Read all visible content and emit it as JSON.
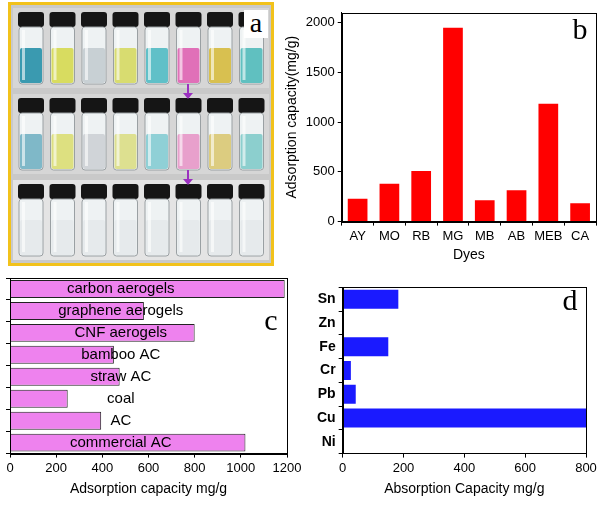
{
  "photo": {
    "panel": "a"
  },
  "chart_data": [
    {
      "panel": "b",
      "type": "bar",
      "categories": [
        "AY",
        "MO",
        "RB",
        "MG",
        "MB",
        "AB",
        "MEB",
        "CA"
      ],
      "values": [
        230,
        380,
        510,
        1950,
        215,
        315,
        1185,
        185
      ],
      "color": "#ff0000",
      "xlabel": "Dyes",
      "ylabel": "Adsorption capacity(mg/g)",
      "ylim": [
        0,
        2100
      ],
      "yticks": [
        0,
        500,
        1000,
        1500,
        2000
      ],
      "grid": false
    },
    {
      "panel": "c",
      "type": "bar",
      "orientation": "horizontal",
      "categories": [
        "carbon aerogels",
        "graphene aerogels",
        "CNF aerogels",
        "bamboo AC",
        "straw AC",
        "coal",
        "AC",
        "commercial AC"
      ],
      "values": [
        1190,
        580,
        800,
        450,
        475,
        250,
        395,
        1020
      ],
      "color": "#ee82ee",
      "xlabel": "Adsorption capacity mg/g",
      "xlim": [
        0,
        1200
      ],
      "xticks": [
        0,
        200,
        400,
        600,
        800,
        1000,
        1200
      ],
      "grid": false,
      "tick_labels": "x"
    },
    {
      "panel": "d",
      "type": "bar",
      "orientation": "horizontal",
      "categories": [
        "Sn",
        "Zn",
        "Fe",
        "Cr",
        "Pb",
        "Cu",
        "Ni"
      ],
      "values": [
        183,
        0,
        150,
        27,
        43,
        800,
        0
      ],
      "color": "#1a1aff",
      "xlabel": "Absorption Capacity mg/g",
      "xlim": [
        0,
        800
      ],
      "xticks": [
        0,
        200,
        400,
        600,
        800
      ],
      "grid": false
    }
  ]
}
